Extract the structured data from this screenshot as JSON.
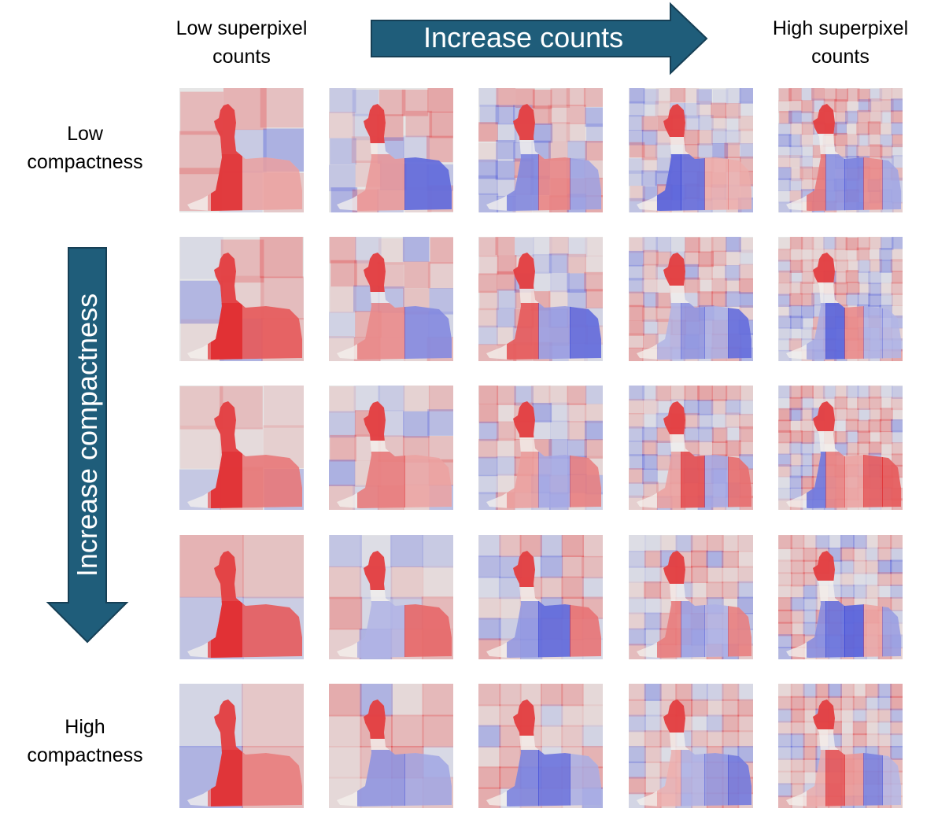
{
  "labels": {
    "low_counts_line1": "Low superpixel",
    "low_counts_line2": "counts",
    "high_counts_line1": "High superpixel",
    "high_counts_line2": "counts",
    "low_compact_line1": "Low",
    "low_compact_line2": "compactness",
    "high_compact_line1": "High",
    "high_compact_line2": "compactness",
    "horizontal_arrow": "Increase counts",
    "vertical_arrow": "Increase compactness"
  },
  "colors": {
    "arrow_fill": "#1f5d7a",
    "arrow_stroke": "#163f55",
    "positive": "#e0282c",
    "negative": "#3340d6",
    "neutral_bg": "#e6e6e6"
  },
  "grid": {
    "rows": 5,
    "cols": 5,
    "row_axis": "compactness (low to high)",
    "col_axis": "superpixel counts (low to high)"
  }
}
